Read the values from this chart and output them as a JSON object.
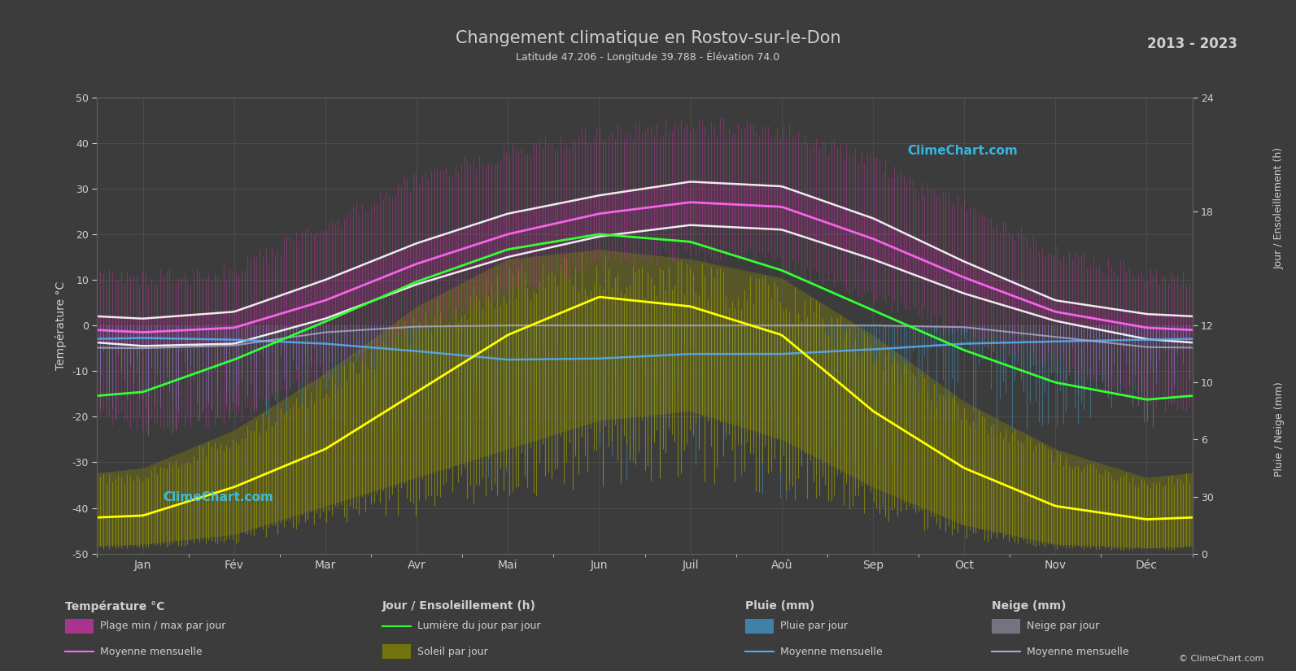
{
  "title": "Changement climatique en Rostov-sur-le-Don",
  "subtitle": "Latitude 47.206 - Longitude 39.788 - Élévation 74.0",
  "years": "2013 - 2023",
  "xlabel_months": [
    "Jan",
    "Fév",
    "Mar",
    "Avr",
    "Mai",
    "Jun",
    "Juil",
    "Aoû",
    "Sep",
    "Oct",
    "Nov",
    "Déc"
  ],
  "ylabel_left": "Température °C",
  "ylabel_right_top": "Jour / Ensoleillement (h)",
  "ylabel_right_bottom": "Pluie / Neige (mm)",
  "background_color": "#3c3c3c",
  "grid_color": "#606060",
  "text_color": "#d0d0d0",
  "temp_ylim": [
    -50,
    50
  ],
  "sun_ylim": [
    0,
    24
  ],
  "rain_ylim": [
    0,
    40
  ],
  "temp_min_abs": [
    -22,
    -20,
    -10,
    0,
    7,
    13,
    16,
    14,
    6,
    -1,
    -8,
    -16
  ],
  "temp_max_abs": [
    10,
    12,
    22,
    32,
    38,
    42,
    44,
    43,
    36,
    26,
    16,
    11
  ],
  "temp_min_mean": [
    -4.5,
    -4.0,
    1.5,
    9.0,
    15.0,
    19.5,
    22.0,
    21.0,
    14.5,
    7.0,
    1.0,
    -3.0
  ],
  "temp_max_mean": [
    1.5,
    3.0,
    10.0,
    18.0,
    24.5,
    28.5,
    31.5,
    30.5,
    23.5,
    14.0,
    5.5,
    2.5
  ],
  "temp_mean": [
    -1.5,
    -0.5,
    5.5,
    13.5,
    20.0,
    24.5,
    27.0,
    26.0,
    19.0,
    10.5,
    3.0,
    -0.5
  ],
  "daylight": [
    8.5,
    10.2,
    12.2,
    14.3,
    16.0,
    16.8,
    16.4,
    14.9,
    12.8,
    10.7,
    9.0,
    8.1
  ],
  "sun_max": [
    4.5,
    6.5,
    9.5,
    13.0,
    15.5,
    16.0,
    15.5,
    14.5,
    11.5,
    8.0,
    5.5,
    4.0
  ],
  "sun_min": [
    0.5,
    1.0,
    2.5,
    4.0,
    5.5,
    7.0,
    7.5,
    6.0,
    3.5,
    1.5,
    0.5,
    0.3
  ],
  "sun_mean": [
    2.0,
    3.5,
    5.5,
    8.5,
    11.5,
    13.5,
    13.0,
    11.5,
    7.5,
    4.5,
    2.5,
    1.8
  ],
  "rain_max_daily": [
    15,
    18,
    20,
    22,
    28,
    28,
    28,
    32,
    28,
    20,
    18,
    15
  ],
  "rain_mean": [
    2.2,
    2.5,
    3.2,
    4.5,
    6.0,
    5.8,
    5.0,
    5.0,
    4.2,
    3.2,
    2.8,
    2.5
  ],
  "snow_max_daily": [
    20,
    18,
    10,
    2,
    0,
    0,
    0,
    0,
    0,
    2,
    10,
    18
  ],
  "snow_mean": [
    4.0,
    3.5,
    1.2,
    0.2,
    0,
    0,
    0,
    0,
    0,
    0.3,
    2.0,
    3.8
  ]
}
